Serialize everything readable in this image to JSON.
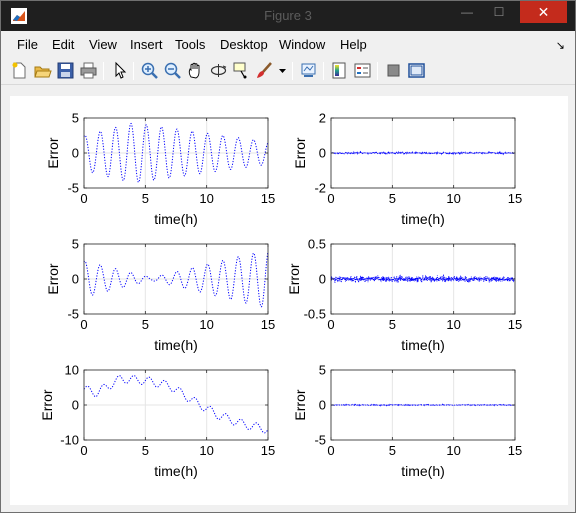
{
  "window": {
    "title": "Figure 3"
  },
  "titlebar_buttons": {
    "minimize": "—",
    "maximize": "☐",
    "close": "✕"
  },
  "menu": [
    "File",
    "Edit",
    "View",
    "Insert",
    "Tools",
    "Desktop",
    "Window",
    "Help"
  ],
  "toolbar_icons": [
    "new-figure-icon",
    "open-file-icon",
    "save-icon",
    "print-icon",
    "edit-plot-arrow-icon",
    "zoom-in-icon",
    "zoom-out-icon",
    "pan-hand-icon",
    "rotate-3d-icon",
    "data-cursor-icon",
    "brush-icon",
    "brush-dropdown-icon",
    "link-plot-icon",
    "insert-colorbar-icon",
    "insert-legend-icon",
    "hide-plot-tools-icon",
    "show-plot-tools-icon"
  ],
  "colors": {
    "trace": "#0000ff",
    "grid": "#e5e5e5",
    "axis": "#262626",
    "close": "#c42b1c"
  },
  "chart_data": [
    {
      "type": "line",
      "position": "row1-left",
      "xlabel": "time(h)",
      "ylabel": "Error",
      "xlim": [
        0,
        15
      ],
      "ylim": [
        -5,
        5
      ],
      "xticks": [
        "0",
        "5",
        "10",
        "15"
      ],
      "yticks": [
        "5",
        "0",
        "-5"
      ],
      "grid": true,
      "style": "dotted",
      "series": [
        {
          "kind": "oscillation",
          "period_h": 1.25,
          "amplitude_start": 2.5,
          "amplitude_peak": 4.3,
          "amplitude_end": 1.6
        }
      ]
    },
    {
      "type": "line",
      "position": "row1-right",
      "xlabel": "time(h)",
      "ylabel": "Error",
      "xlim": [
        0,
        15
      ],
      "ylim": [
        -2,
        2
      ],
      "xticks": [
        "0",
        "5",
        "10",
        "15"
      ],
      "yticks": [
        "2",
        "0",
        "-2"
      ],
      "grid": true,
      "style": "dotted",
      "series": [
        {
          "kind": "noise",
          "mean": 0,
          "spread": 0.05
        }
      ]
    },
    {
      "type": "line",
      "position": "row2-left",
      "xlabel": "time(h)",
      "ylabel": "Error",
      "xlim": [
        0,
        15
      ],
      "ylim": [
        -5,
        5
      ],
      "xticks": [
        "0",
        "5",
        "10",
        "15"
      ],
      "yticks": [
        "5",
        "0",
        "-5"
      ],
      "grid": true,
      "style": "dotted",
      "series": [
        {
          "kind": "oscillation",
          "period_h": 1.25,
          "amplitude_start": 2.6,
          "amplitude_min": 0.2,
          "min_at_h": 5.5,
          "amplitude_end": 4.2
        }
      ]
    },
    {
      "type": "line",
      "position": "row2-right",
      "xlabel": "time(h)",
      "ylabel": "Error",
      "xlim": [
        0,
        15
      ],
      "ylim": [
        -0.5,
        0.5
      ],
      "xticks": [
        "0",
        "5",
        "10",
        "15"
      ],
      "yticks": [
        "0.5",
        "0",
        "-0.5"
      ],
      "grid": true,
      "style": "dotted",
      "series": [
        {
          "kind": "noise",
          "mean": 0,
          "spread": 0.06
        }
      ]
    },
    {
      "type": "line",
      "position": "row3-left",
      "xlabel": "time(h)",
      "ylabel": "Error",
      "xlim": [
        0,
        15
      ],
      "ylim": [
        -10,
        10
      ],
      "xticks": [
        "0",
        "5",
        "10",
        "15"
      ],
      "yticks": [
        "10",
        "0",
        "-10"
      ],
      "grid": true,
      "style": "dotted",
      "series": [
        {
          "kind": "trend",
          "points": [
            [
              0,
              4.5
            ],
            [
              1,
              3.5
            ],
            [
              3,
              7.5
            ],
            [
              5,
              7
            ],
            [
              7,
              5.5
            ],
            [
              9,
              1
            ],
            [
              11,
              -3
            ],
            [
              13,
              -5.5
            ],
            [
              15,
              -7
            ]
          ],
          "ripple": 1.2
        }
      ]
    },
    {
      "type": "line",
      "position": "row3-right",
      "xlabel": "time(h)",
      "ylabel": "Error",
      "xlim": [
        0,
        15
      ],
      "ylim": [
        -5,
        5
      ],
      "xticks": [
        "0",
        "5",
        "10",
        "15"
      ],
      "yticks": [
        "5",
        "0",
        "-5"
      ],
      "grid": true,
      "style": "dotted",
      "series": [
        {
          "kind": "noise",
          "mean": 0,
          "spread": 0.08
        }
      ]
    }
  ]
}
